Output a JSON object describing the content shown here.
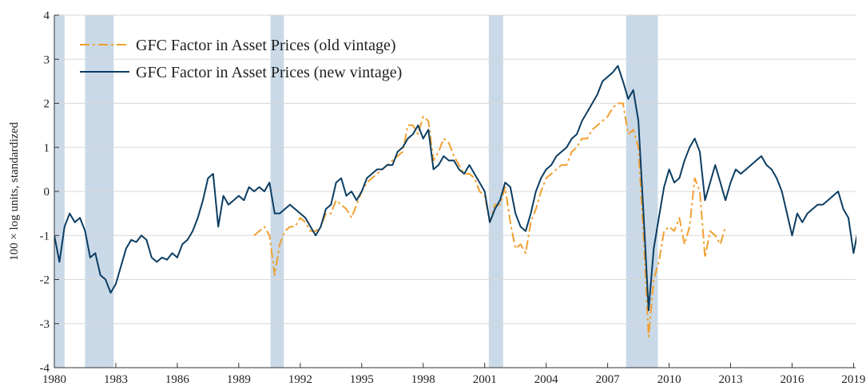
{
  "chart_data": {
    "type": "line",
    "y_label": "100 × log units, standardized",
    "xlim": [
      1980,
      2019.1
    ],
    "ylim": [
      -4,
      4
    ],
    "xticks": [
      1980,
      1983,
      1986,
      1989,
      1992,
      1995,
      1998,
      2001,
      2004,
      2007,
      2010,
      2013,
      2016,
      2019
    ],
    "yticks": [
      -4,
      -3,
      -2,
      -1,
      0,
      1,
      2,
      3,
      4
    ],
    "grid": true,
    "legend": "upper left",
    "recessions": [
      [
        1980.0,
        1980.5
      ],
      [
        1981.5,
        1982.9
      ],
      [
        1990.55,
        1991.2
      ],
      [
        2001.2,
        2001.9
      ],
      [
        2007.9,
        2009.45
      ]
    ],
    "recession_color": "#c9d9e8",
    "x": [
      1980,
      1980.25,
      1980.5,
      1980.75,
      1981,
      1981.25,
      1981.5,
      1981.75,
      1982,
      1982.25,
      1982.5,
      1982.75,
      1983,
      1983.25,
      1983.5,
      1983.75,
      1984,
      1984.25,
      1984.5,
      1984.75,
      1985,
      1985.25,
      1985.5,
      1985.75,
      1986,
      1986.25,
      1986.5,
      1986.75,
      1987,
      1987.25,
      1987.5,
      1987.75,
      1988,
      1988.25,
      1988.5,
      1988.75,
      1989,
      1989.25,
      1989.5,
      1989.75,
      1990,
      1990.25,
      1990.5,
      1990.75,
      1991,
      1991.25,
      1991.5,
      1991.75,
      1992,
      1992.25,
      1992.5,
      1992.75,
      1993,
      1993.25,
      1993.5,
      1993.75,
      1994,
      1994.25,
      1994.5,
      1994.75,
      1995,
      1995.25,
      1995.5,
      1995.75,
      1996,
      1996.25,
      1996.5,
      1996.75,
      1997,
      1997.25,
      1997.5,
      1997.75,
      1998,
      1998.25,
      1998.5,
      1998.75,
      1999,
      1999.25,
      1999.5,
      1999.75,
      2000,
      2000.25,
      2000.5,
      2000.75,
      2001,
      2001.25,
      2001.5,
      2001.75,
      2002,
      2002.25,
      2002.5,
      2002.75,
      2003,
      2003.25,
      2003.5,
      2003.75,
      2004,
      2004.25,
      2004.5,
      2004.75,
      2005,
      2005.25,
      2005.5,
      2005.75,
      2006,
      2006.25,
      2006.5,
      2006.75,
      2007,
      2007.25,
      2007.5,
      2007.75,
      2008,
      2008.25,
      2008.5,
      2008.75,
      2009,
      2009.25,
      2009.5,
      2009.75,
      2010,
      2010.25,
      2010.5,
      2010.75,
      2011,
      2011.25,
      2011.5,
      2011.75,
      2012,
      2012.25,
      2012.5,
      2012.75,
      2013,
      2013.25,
      2013.5,
      2013.75,
      2014,
      2014.25,
      2014.5,
      2014.75,
      2015,
      2015.25,
      2015.5,
      2015.75,
      2016,
      2016.25,
      2016.5,
      2016.75,
      2017,
      2017.25,
      2017.5,
      2017.75,
      2018,
      2018.25,
      2018.5,
      2018.75,
      2019,
      2019.25
    ],
    "series": [
      {
        "name": "GFC Factor in Asset Prices (old vintage)",
        "color": "#f0a030",
        "dash": "12 4 3 4",
        "values": [
          null,
          null,
          null,
          null,
          null,
          null,
          null,
          null,
          null,
          null,
          null,
          null,
          null,
          null,
          null,
          null,
          null,
          null,
          null,
          null,
          null,
          null,
          null,
          null,
          null,
          null,
          null,
          null,
          null,
          null,
          null,
          null,
          null,
          null,
          null,
          null,
          null,
          null,
          null,
          -1.0,
          -0.9,
          -0.8,
          -1.0,
          -1.9,
          -1.2,
          -0.9,
          -0.8,
          -0.8,
          -0.6,
          -0.7,
          -0.9,
          -0.9,
          -0.8,
          -0.5,
          -0.5,
          -0.2,
          -0.3,
          -0.4,
          -0.6,
          -0.3,
          0.0,
          0.2,
          0.3,
          0.4,
          0.5,
          0.6,
          0.7,
          0.8,
          0.9,
          1.5,
          1.5,
          1.3,
          1.7,
          1.6,
          0.7,
          0.9,
          1.2,
          1.1,
          0.8,
          0.6,
          0.4,
          0.4,
          0.3,
          0.0,
          -0.1,
          -0.7,
          -0.3,
          -0.3,
          0.1,
          -0.7,
          -1.3,
          -1.2,
          -1.4,
          -0.7,
          -0.4,
          0.0,
          0.3,
          0.4,
          0.5,
          0.6,
          0.6,
          0.9,
          1.0,
          1.2,
          1.2,
          1.4,
          1.5,
          1.6,
          1.7,
          1.9,
          2.0,
          2.0,
          1.3,
          1.4,
          1.0,
          -1.0,
          -3.3,
          -2.0,
          -1.6,
          -0.9,
          -0.8,
          -0.9,
          -0.6,
          -1.2,
          -0.8,
          0.3,
          0.0,
          -1.5,
          -0.9,
          -1.0,
          -1.2,
          -0.8,
          null,
          null,
          null,
          null,
          null,
          null,
          null,
          null,
          null,
          null,
          null,
          null,
          null,
          null,
          null,
          null,
          null,
          null,
          null,
          null,
          null,
          null,
          null,
          null,
          null,
          null
        ]
      },
      {
        "name": "GFC Factor in Asset Prices (new vintage)",
        "color": "#0b3d62",
        "values": [
          -1.0,
          -1.6,
          -0.8,
          -0.5,
          -0.7,
          -0.6,
          -0.9,
          -1.5,
          -1.4,
          -1.9,
          -2.0,
          -2.3,
          -2.1,
          -1.7,
          -1.3,
          -1.1,
          -1.15,
          -1.0,
          -1.1,
          -1.5,
          -1.6,
          -1.5,
          -1.55,
          -1.4,
          -1.5,
          -1.2,
          -1.1,
          -0.9,
          -0.6,
          -0.2,
          0.3,
          0.4,
          -0.8,
          -0.1,
          -0.3,
          -0.2,
          -0.1,
          -0.2,
          0.1,
          0.0,
          0.1,
          0.0,
          0.2,
          -0.5,
          -0.5,
          -0.4,
          -0.3,
          -0.4,
          -0.5,
          -0.6,
          -0.8,
          -1.0,
          -0.8,
          -0.4,
          -0.3,
          0.2,
          0.3,
          -0.1,
          0.0,
          -0.2,
          0.0,
          0.3,
          0.4,
          0.5,
          0.5,
          0.6,
          0.6,
          0.9,
          1.0,
          1.2,
          1.3,
          1.5,
          1.2,
          1.4,
          0.5,
          0.6,
          0.8,
          0.7,
          0.7,
          0.5,
          0.4,
          0.6,
          0.4,
          0.2,
          0.0,
          -0.7,
          -0.4,
          -0.2,
          0.2,
          0.1,
          -0.5,
          -0.8,
          -0.9,
          -0.5,
          0.0,
          0.3,
          0.5,
          0.6,
          0.8,
          0.9,
          1.0,
          1.2,
          1.3,
          1.6,
          1.8,
          2.0,
          2.2,
          2.5,
          2.6,
          2.7,
          2.85,
          2.5,
          2.1,
          2.3,
          1.6,
          -0.5,
          -2.7,
          -1.3,
          -0.6,
          0.1,
          0.5,
          0.2,
          0.3,
          0.7,
          1.0,
          1.2,
          0.9,
          -0.2,
          0.2,
          0.6,
          0.2,
          -0.2,
          0.2,
          0.5,
          0.4,
          0.5,
          0.6,
          0.7,
          0.8,
          0.6,
          0.5,
          0.3,
          0.0,
          -0.5,
          -1.0,
          -0.5,
          -0.7,
          -0.5,
          -0.4,
          -0.3,
          -0.3,
          -0.2,
          -0.1,
          0.0,
          -0.4,
          -0.6,
          -1.4,
          -0.8
        ]
      }
    ]
  }
}
